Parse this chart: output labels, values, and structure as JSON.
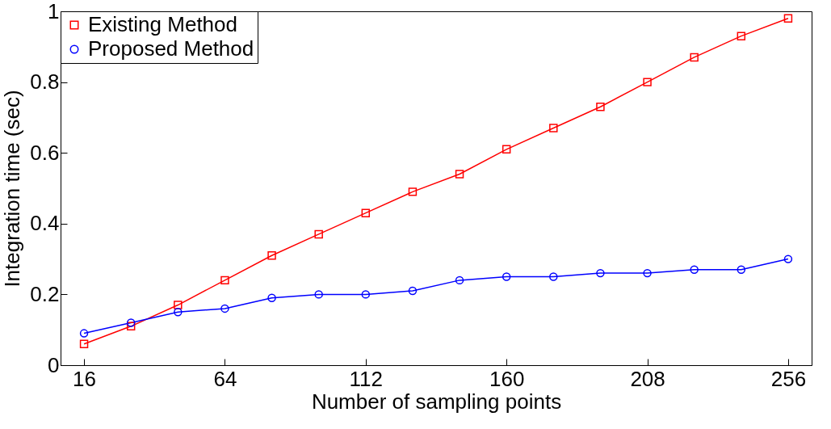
{
  "chart_data": {
    "type": "line",
    "xlabel": "Number of sampling points",
    "ylabel": "Integration time (sec)",
    "x": [
      16,
      32,
      48,
      64,
      80,
      96,
      112,
      128,
      144,
      160,
      176,
      192,
      208,
      224,
      240,
      256
    ],
    "series": [
      {
        "name": "Existing Method",
        "color": "#ff0000",
        "marker": "square",
        "values": [
          0.06,
          0.11,
          0.17,
          0.24,
          0.31,
          0.37,
          0.43,
          0.49,
          0.54,
          0.61,
          0.67,
          0.73,
          0.8,
          0.87,
          0.93,
          0.98
        ]
      },
      {
        "name": "Proposed Method",
        "color": "#0000ff",
        "marker": "circle",
        "values": [
          0.09,
          0.12,
          0.15,
          0.16,
          0.19,
          0.2,
          0.2,
          0.21,
          0.24,
          0.25,
          0.25,
          0.26,
          0.26,
          0.27,
          0.27,
          0.3
        ]
      }
    ],
    "xlim": [
      8,
      264
    ],
    "xticks": [
      16,
      64,
      112,
      160,
      208,
      256
    ],
    "ylim": [
      0,
      1
    ],
    "yticks": [
      0,
      0.2,
      0.4,
      0.6,
      0.8,
      1
    ],
    "grid": false,
    "legend": "top left",
    "line_style": "solid"
  }
}
